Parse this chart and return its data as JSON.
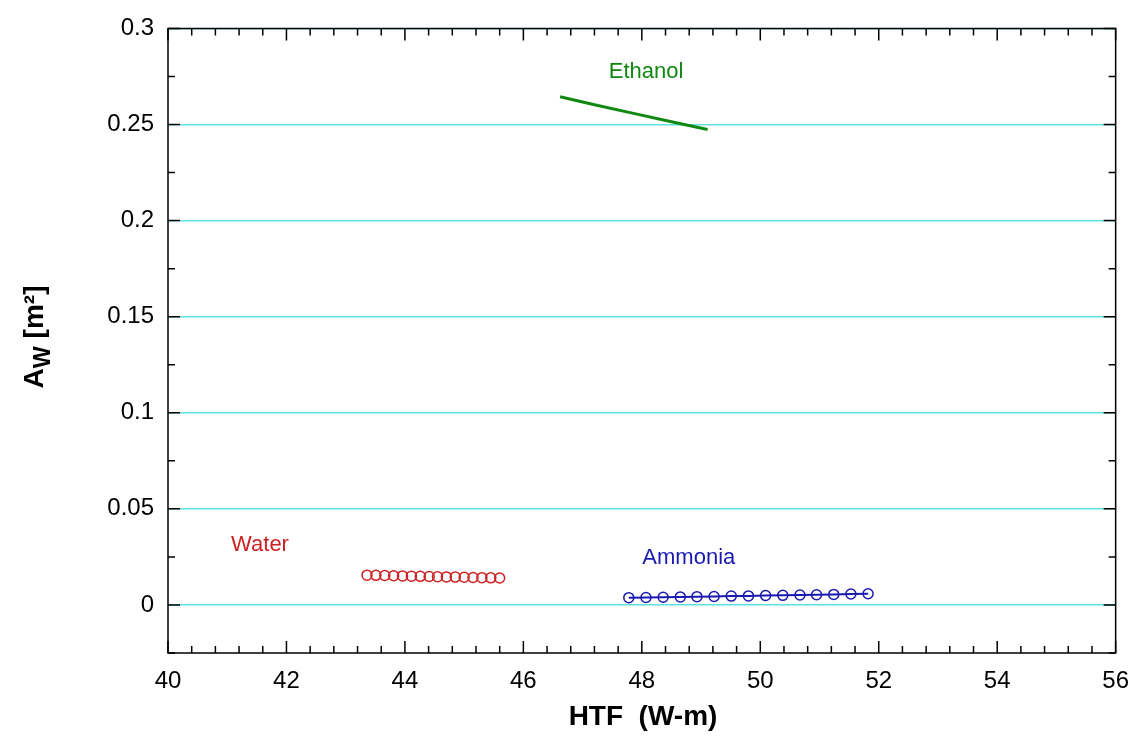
{
  "chart_data": {
    "type": "line",
    "xlabel": "HTF  (W-m)",
    "ylabel": "A$_{W}$  [m²]",
    "xlim": [
      40,
      56
    ],
    "ylim": [
      -0.025,
      0.3
    ],
    "xticks": [
      40,
      {
        "value": 40.4,
        "label": null
      },
      {
        "value": 40.8,
        "label": null
      },
      {
        "value": 41.2,
        "label": null
      },
      {
        "value": 41.6,
        "label": null
      },
      42,
      {
        "value": 42.4,
        "label": null
      },
      {
        "value": 42.8,
        "label": null
      },
      {
        "value": 43.2,
        "label": null
      },
      {
        "value": 43.6,
        "label": null
      },
      44,
      {
        "value": 44.4,
        "label": null
      },
      {
        "value": 44.8,
        "label": null
      },
      {
        "value": 45.2,
        "label": null
      },
      {
        "value": 45.6,
        "label": null
      },
      46,
      {
        "value": 46.4,
        "label": null
      },
      {
        "value": 46.8,
        "label": null
      },
      {
        "value": 47.2,
        "label": null
      },
      {
        "value": 47.6,
        "label": null
      },
      48,
      {
        "value": 48.4,
        "label": null
      },
      {
        "value": 48.8,
        "label": null
      },
      {
        "value": 49.2,
        "label": null
      },
      {
        "value": 49.6,
        "label": null
      },
      50,
      {
        "value": 50.4,
        "label": null
      },
      {
        "value": 50.8,
        "label": null
      },
      {
        "value": 51.2,
        "label": null
      },
      {
        "value": 51.6,
        "label": null
      },
      52,
      {
        "value": 52.4,
        "label": null
      },
      {
        "value": 52.8,
        "label": null
      },
      {
        "value": 53.2,
        "label": null
      },
      {
        "value": 53.6,
        "label": null
      },
      54,
      {
        "value": 54.4,
        "label": null
      },
      {
        "value": 54.8,
        "label": null
      },
      {
        "value": 55.2,
        "label": null
      },
      {
        "value": 55.6,
        "label": null
      },
      56
    ],
    "yticks": [
      {
        "value": -0.025,
        "label": null
      },
      0,
      {
        "value": 0.025,
        "label": null
      },
      0.05,
      {
        "value": 0.075,
        "label": null
      },
      0.1,
      {
        "value": 0.125,
        "label": null
      },
      0.15,
      {
        "value": 0.175,
        "label": null
      },
      0.2,
      {
        "value": 0.225,
        "label": null
      },
      0.25,
      {
        "value": 0.275,
        "label": null
      },
      0.3
    ],
    "grid": "y",
    "series": [
      {
        "name": "Water",
        "type": "scatter",
        "color": "#cc2222",
        "marker": "circle",
        "x": [
          43.36,
          43.51,
          43.66,
          43.81,
          43.96,
          44.11,
          44.26,
          44.41,
          44.55,
          44.7,
          44.85,
          45,
          45.15,
          45.3,
          45.45,
          45.6
        ],
        "values": [
          0.0155,
          0.0154,
          0.0153,
          0.0152,
          0.0151,
          0.015,
          0.0149,
          0.0148,
          0.0147,
          0.0146,
          0.0145,
          0.0144,
          0.0143,
          0.0142,
          0.0141,
          0.014
        ]
      },
      {
        "name": "Ethanol",
        "color": "#118811",
        "marker": "none",
        "x": [
          46.62,
          47.2,
          47.86,
          48.5,
          49.11
        ],
        "values": [
          0.2644,
          0.2603,
          0.2558,
          0.2514,
          0.2474
        ]
      },
      {
        "name": "Ammonia",
        "color": "#1a1ab0",
        "marker": "circle",
        "x": [
          47.78,
          48.07,
          48.36,
          48.65,
          48.93,
          49.22,
          49.51,
          49.8,
          50.09,
          50.38,
          50.67,
          50.95,
          51.24,
          51.53,
          51.82
        ],
        "values": [
          0.0038,
          0.0039,
          0.004,
          0.0042,
          0.0043,
          0.0044,
          0.0046,
          0.0047,
          0.0049,
          0.005,
          0.0052,
          0.0053,
          0.0055,
          0.0057,
          0.0058
        ]
      }
    ]
  }
}
